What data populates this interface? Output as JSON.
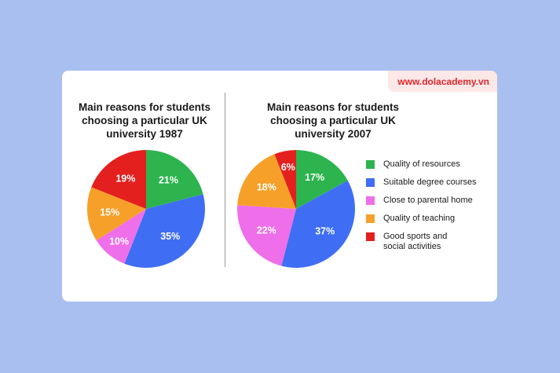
{
  "brand": {
    "text": "www.dolacademy.vn"
  },
  "chart_data": [
    {
      "type": "pie",
      "title": "Main reasons for students choosing a particular UK university 1987",
      "categories": [
        "Quality of resources",
        "Suitable degree courses",
        "Close to parental home",
        "Quality of teaching",
        "Good sports and social activities"
      ],
      "values": [
        21,
        35,
        10,
        15,
        19
      ],
      "labels": [
        "21%",
        "35%",
        "10%",
        "15%",
        "19%"
      ]
    },
    {
      "type": "pie",
      "title": "Main reasons for students choosing a particular UK university 2007",
      "categories": [
        "Quality of resources",
        "Suitable degree courses",
        "Close to parental home",
        "Quality of teaching",
        "Good sports and social activities"
      ],
      "values": [
        17,
        37,
        22,
        18,
        6
      ],
      "labels": [
        "17%",
        "37%",
        "22%",
        "18%",
        "6%"
      ]
    }
  ],
  "legend": {
    "items": [
      {
        "label": "Quality of resources",
        "color": "#2db44e"
      },
      {
        "label": "Suitable degree courses",
        "color": "#3f6ef5"
      },
      {
        "label": "Close to parental home",
        "color": "#ee6fe9"
      },
      {
        "label": "Quality of teaching",
        "color": "#f6a02a"
      },
      {
        "label": "Good sports and\nsocial activities",
        "color": "#e4201f"
      }
    ]
  }
}
